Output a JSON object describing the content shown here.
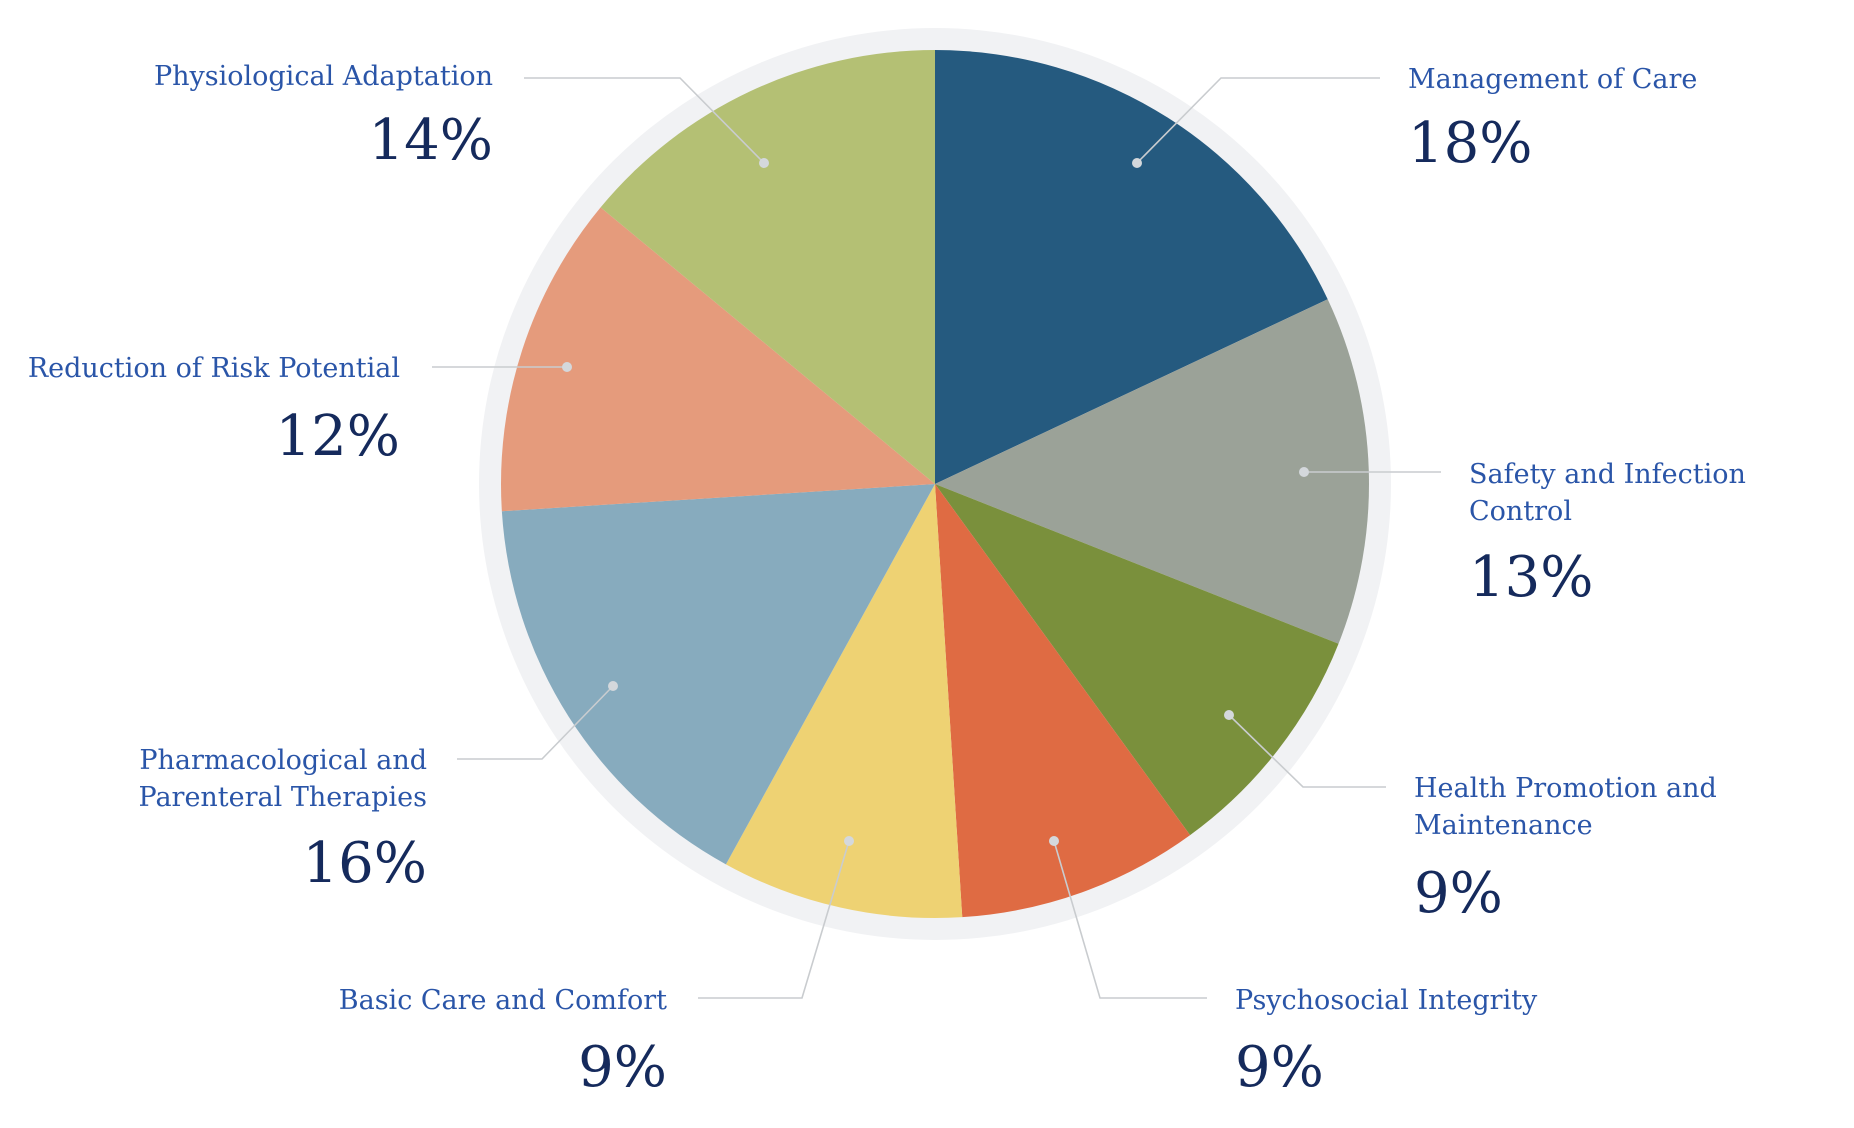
{
  "chart_data": {
    "type": "pie",
    "title": "",
    "unit": "%",
    "slices": [
      {
        "label": "Management of Care",
        "value": 18,
        "display": "18%",
        "color": "#255a7f"
      },
      {
        "label": "Safety and Infection Control",
        "value": 13,
        "display": "13%",
        "color": "#9ba298"
      },
      {
        "label": "Health Promotion and Maintenance",
        "value": 9,
        "display": "9%",
        "color": "#7a903c"
      },
      {
        "label": "Psychosocial Integrity",
        "value": 9,
        "display": "9%",
        "color": "#df6b43"
      },
      {
        "label": "Basic Care and Comfort",
        "value": 9,
        "display": "9%",
        "color": "#eed273"
      },
      {
        "label": "Pharmacological and Parenteral Therapies",
        "value": 16,
        "display": "16%",
        "color": "#87abbe"
      },
      {
        "label": "Reduction of Risk Potential",
        "value": 12,
        "display": "12%",
        "color": "#e59b7c"
      },
      {
        "label": "Physiological Adaptation",
        "value": 14,
        "display": "14%",
        "color": "#b4c074"
      }
    ],
    "start_angle": "12 o'clock",
    "direction": "clockwise",
    "legend": "none",
    "label_style": "callout",
    "colors": {
      "ring": "#f1f2f4",
      "label_text": "#2a55a8",
      "value_text": "#152a5c",
      "leader": "#c9cccf"
    }
  }
}
